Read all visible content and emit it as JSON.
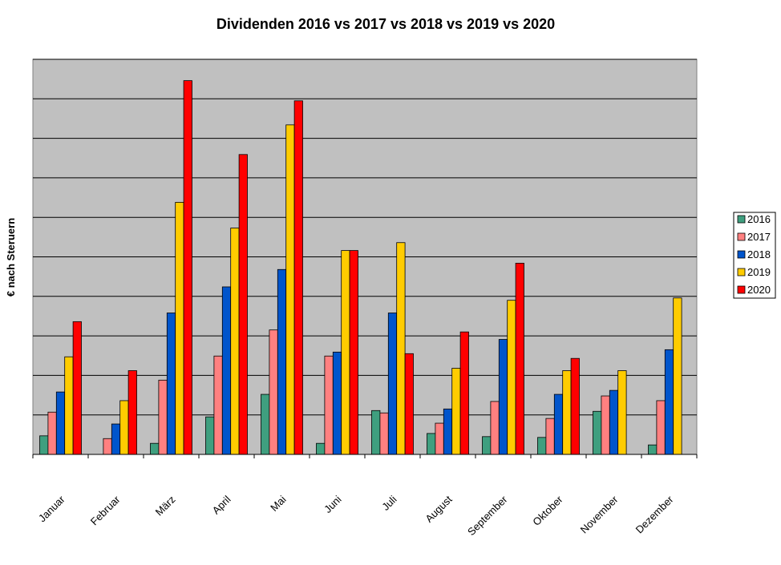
{
  "chart_data": {
    "type": "bar",
    "title": "Dividenden 2016 vs 2017 vs 2018 vs 2019 vs 2020",
    "ylabel": "€ nach Steruern",
    "xlabel": "",
    "ylim": [
      0,
      100
    ],
    "gridlines": 10,
    "grid": true,
    "legend": "right",
    "categories": [
      "Januar",
      "Februar",
      "März",
      "April",
      "Mai",
      "Juni",
      "Juli",
      "August",
      "September",
      "Oktober",
      "November",
      "Dezember"
    ],
    "series": [
      {
        "name": "2016",
        "color": "#3f9f7f",
        "values": [
          4.7,
          0,
          2.8,
          9.5,
          15.2,
          2.8,
          11.1,
          5.3,
          4.5,
          4.3,
          10.9,
          2.4
        ]
      },
      {
        "name": "2017",
        "color": "#ff8080",
        "values": [
          10.7,
          4.0,
          18.8,
          24.9,
          31.5,
          24.9,
          10.5,
          7.9,
          13.4,
          9.1,
          14.8,
          13.6
        ]
      },
      {
        "name": "2018",
        "color": "#0055cc",
        "values": [
          15.8,
          7.7,
          35.8,
          42.4,
          46.8,
          25.9,
          35.8,
          11.5,
          29.1,
          15.2,
          16.2,
          26.5
        ]
      },
      {
        "name": "2019",
        "color": "#ffcc00",
        "values": [
          24.7,
          13.6,
          63.8,
          57.3,
          83.4,
          51.6,
          53.6,
          21.8,
          39.0,
          21.2,
          21.2,
          39.6
        ]
      },
      {
        "name": "2020",
        "color": "#ff0000",
        "values": [
          33.6,
          21.2,
          94.6,
          75.9,
          89.5,
          51.6,
          25.5,
          31.0,
          48.4,
          24.3,
          null,
          null
        ]
      }
    ]
  }
}
